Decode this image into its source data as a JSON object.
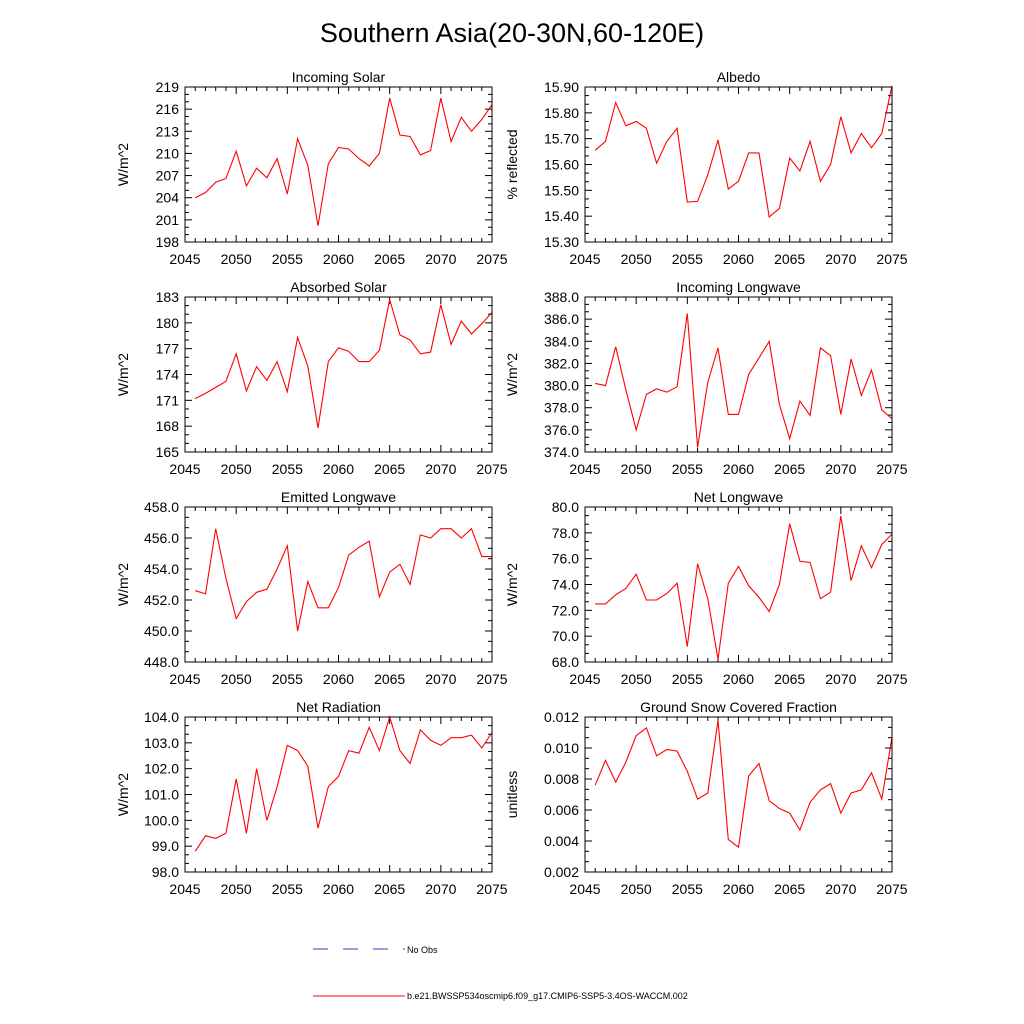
{
  "page": {
    "title": "Southern Asia(20-30N,60-120E)"
  },
  "legend": [
    {
      "label": "No Obs",
      "color": "#3b3bb5",
      "dash": "dashed"
    },
    {
      "label": "b.e21.BWSSP534oscmip6.f09_g17.CMIP6-SSP5-3.4OS-WACCM.002",
      "color": "#ff0000",
      "dash": "solid"
    }
  ],
  "chart_data": [
    {
      "type": "line",
      "title": "Incoming Solar",
      "ylabel": "W/m^2",
      "xlim": [
        2045,
        2075
      ],
      "ylim": [
        198,
        219
      ],
      "xticks": [
        2045,
        2050,
        2055,
        2060,
        2065,
        2070,
        2075
      ],
      "yticks": [
        198,
        201,
        204,
        207,
        210,
        213,
        216,
        219
      ],
      "ytick_labels": [
        "198",
        "201",
        "204",
        "207",
        "210",
        "213",
        "216",
        "219"
      ],
      "color": "#ff0000",
      "x": [
        2046,
        2047,
        2048,
        2049,
        2050,
        2051,
        2052,
        2053,
        2054,
        2055,
        2056,
        2057,
        2058,
        2059,
        2060,
        2061,
        2062,
        2063,
        2064,
        2065,
        2066,
        2067,
        2068,
        2069,
        2070,
        2071,
        2072,
        2073,
        2074,
        2075
      ],
      "values": [
        204.0,
        204.7,
        206.1,
        206.6,
        210.3,
        205.6,
        208.0,
        206.7,
        209.3,
        204.5,
        212.0,
        208.4,
        200.2,
        208.6,
        210.8,
        210.6,
        209.3,
        208.3,
        210.0,
        217.5,
        212.5,
        212.3,
        209.8,
        210.4,
        217.5,
        211.6,
        214.9,
        213.0,
        214.6,
        216.6
      ]
    },
    {
      "type": "line",
      "title": "Albedo",
      "ylabel": "% reflected",
      "xlim": [
        2045,
        2075
      ],
      "ylim": [
        15.3,
        15.9
      ],
      "xticks": [
        2045,
        2050,
        2055,
        2060,
        2065,
        2070,
        2075
      ],
      "yticks": [
        15.3,
        15.4,
        15.5,
        15.6,
        15.7,
        15.8,
        15.9
      ],
      "ytick_labels": [
        "15.30",
        "15.40",
        "15.50",
        "15.60",
        "15.70",
        "15.80",
        "15.90"
      ],
      "color": "#ff0000",
      "x": [
        2046,
        2047,
        2048,
        2049,
        2050,
        2051,
        2052,
        2053,
        2054,
        2055,
        2056,
        2057,
        2058,
        2059,
        2060,
        2061,
        2062,
        2063,
        2064,
        2065,
        2066,
        2067,
        2068,
        2069,
        2070,
        2071,
        2072,
        2073,
        2074,
        2075
      ],
      "values": [
        15.655,
        15.69,
        15.84,
        15.75,
        15.767,
        15.74,
        15.605,
        15.69,
        15.74,
        15.455,
        15.457,
        15.56,
        15.695,
        15.505,
        15.535,
        15.645,
        15.645,
        15.397,
        15.43,
        15.625,
        15.575,
        15.69,
        15.535,
        15.6,
        15.785,
        15.645,
        15.72,
        15.665,
        15.72,
        15.905
      ]
    },
    {
      "type": "line",
      "title": "Absorbed Solar",
      "ylabel": "W/m^2",
      "xlim": [
        2045,
        2075
      ],
      "ylim": [
        165,
        183
      ],
      "xticks": [
        2045,
        2050,
        2055,
        2060,
        2065,
        2070,
        2075
      ],
      "yticks": [
        165,
        168,
        171,
        174,
        177,
        180,
        183
      ],
      "ytick_labels": [
        "165",
        "168",
        "171",
        "174",
        "177",
        "180",
        "183"
      ],
      "color": "#ff0000",
      "x": [
        2046,
        2047,
        2048,
        2049,
        2050,
        2051,
        2052,
        2053,
        2054,
        2055,
        2056,
        2057,
        2058,
        2059,
        2060,
        2061,
        2062,
        2063,
        2064,
        2065,
        2066,
        2067,
        2068,
        2069,
        2070,
        2071,
        2072,
        2073,
        2074,
        2075
      ],
      "values": [
        171.2,
        171.8,
        172.5,
        173.2,
        176.4,
        172.1,
        174.9,
        173.3,
        175.5,
        172.0,
        178.3,
        175.0,
        167.8,
        175.5,
        177.1,
        176.7,
        175.5,
        175.5,
        176.8,
        182.7,
        178.6,
        178.0,
        176.4,
        176.6,
        182.1,
        177.5,
        180.2,
        178.7,
        179.9,
        181.2
      ]
    },
    {
      "type": "line",
      "title": "Incoming Longwave",
      "ylabel": "W/m^2",
      "xlim": [
        2045,
        2075
      ],
      "ylim": [
        374.0,
        388.0
      ],
      "xticks": [
        2045,
        2050,
        2055,
        2060,
        2065,
        2070,
        2075
      ],
      "yticks": [
        374.0,
        376.0,
        378.0,
        380.0,
        382.0,
        384.0,
        386.0,
        388.0
      ],
      "ytick_labels": [
        "374.0",
        "376.0",
        "378.0",
        "380.0",
        "382.0",
        "384.0",
        "386.0",
        "388.0"
      ],
      "color": "#ff0000",
      "x": [
        2046,
        2047,
        2048,
        2049,
        2050,
        2051,
        2052,
        2053,
        2054,
        2055,
        2056,
        2057,
        2058,
        2059,
        2060,
        2061,
        2062,
        2063,
        2064,
        2065,
        2066,
        2067,
        2068,
        2069,
        2070,
        2071,
        2072,
        2073,
        2074,
        2075
      ],
      "values": [
        380.2,
        380.0,
        383.5,
        379.6,
        376.0,
        379.2,
        379.7,
        379.4,
        379.9,
        386.5,
        374.4,
        380.3,
        383.4,
        377.4,
        377.4,
        381.0,
        382.5,
        384.0,
        378.3,
        375.2,
        378.6,
        377.3,
        383.4,
        382.7,
        377.4,
        382.4,
        379.1,
        381.4,
        377.8,
        377.0
      ]
    },
    {
      "type": "line",
      "title": "Emitted Longwave",
      "ylabel": "W/m^2",
      "xlim": [
        2045,
        2075
      ],
      "ylim": [
        448.0,
        458.0
      ],
      "xticks": [
        2045,
        2050,
        2055,
        2060,
        2065,
        2070,
        2075
      ],
      "yticks": [
        448.0,
        450.0,
        452.0,
        454.0,
        456.0,
        458.0
      ],
      "ytick_labels": [
        "448.0",
        "450.0",
        "452.0",
        "454.0",
        "456.0",
        "458.0"
      ],
      "color": "#ff0000",
      "x": [
        2046,
        2047,
        2048,
        2049,
        2050,
        2051,
        2052,
        2053,
        2054,
        2055,
        2056,
        2057,
        2058,
        2059,
        2060,
        2061,
        2062,
        2063,
        2064,
        2065,
        2066,
        2067,
        2068,
        2069,
        2070,
        2071,
        2072,
        2073,
        2074,
        2075
      ],
      "values": [
        452.6,
        452.4,
        456.6,
        453.4,
        450.8,
        451.9,
        452.5,
        452.7,
        454.0,
        455.5,
        450.0,
        453.2,
        451.5,
        451.5,
        452.8,
        454.9,
        455.4,
        455.8,
        452.2,
        453.8,
        454.3,
        453.0,
        456.2,
        456.0,
        456.6,
        456.6,
        456.0,
        456.6,
        454.8,
        454.8
      ]
    },
    {
      "type": "line",
      "title": "Net Longwave",
      "ylabel": "W/m^2",
      "xlim": [
        2045,
        2075
      ],
      "ylim": [
        68.0,
        80.0
      ],
      "xticks": [
        2045,
        2050,
        2055,
        2060,
        2065,
        2070,
        2075
      ],
      "yticks": [
        68.0,
        70.0,
        72.0,
        74.0,
        76.0,
        78.0,
        80.0
      ],
      "ytick_labels": [
        "68.0",
        "70.0",
        "72.0",
        "74.0",
        "76.0",
        "78.0",
        "80.0"
      ],
      "color": "#ff0000",
      "x": [
        2046,
        2047,
        2048,
        2049,
        2050,
        2051,
        2052,
        2053,
        2054,
        2055,
        2056,
        2057,
        2058,
        2059,
        2060,
        2061,
        2062,
        2063,
        2064,
        2065,
        2066,
        2067,
        2068,
        2069,
        2070,
        2071,
        2072,
        2073,
        2074,
        2075
      ],
      "values": [
        72.5,
        72.5,
        73.2,
        73.7,
        74.8,
        72.8,
        72.8,
        73.3,
        74.1,
        69.2,
        75.6,
        72.9,
        68.2,
        74.1,
        75.4,
        73.9,
        73.0,
        71.9,
        74.0,
        78.7,
        75.8,
        75.7,
        72.9,
        73.4,
        79.3,
        74.3,
        77.0,
        75.3,
        77.1,
        77.9
      ]
    },
    {
      "type": "line",
      "title": "Net Radiation",
      "ylabel": "W/m^2",
      "xlim": [
        2045,
        2075
      ],
      "ylim": [
        98.0,
        104.0
      ],
      "xticks": [
        2045,
        2050,
        2055,
        2060,
        2065,
        2070,
        2075
      ],
      "yticks": [
        98.0,
        99.0,
        100.0,
        101.0,
        102.0,
        103.0,
        104.0
      ],
      "ytick_labels": [
        "98.0",
        "99.0",
        "100.0",
        "101.0",
        "102.0",
        "103.0",
        "104.0"
      ],
      "color": "#ff0000",
      "x": [
        2046,
        2047,
        2048,
        2049,
        2050,
        2051,
        2052,
        2053,
        2054,
        2055,
        2056,
        2057,
        2058,
        2059,
        2060,
        2061,
        2062,
        2063,
        2064,
        2065,
        2066,
        2067,
        2068,
        2069,
        2070,
        2071,
        2072,
        2073,
        2074,
        2075
      ],
      "values": [
        98.8,
        99.4,
        99.3,
        99.5,
        101.6,
        99.5,
        102.0,
        100.0,
        101.3,
        102.9,
        102.7,
        102.1,
        99.7,
        101.3,
        101.7,
        102.7,
        102.6,
        103.6,
        102.7,
        104.0,
        102.7,
        102.2,
        103.5,
        103.1,
        102.9,
        103.2,
        103.2,
        103.3,
        102.8,
        103.4
      ]
    },
    {
      "type": "line",
      "title": "Ground Snow Covered Fraction",
      "ylabel": "unitless",
      "xlim": [
        2045,
        2075
      ],
      "ylim": [
        0.002,
        0.012
      ],
      "xticks": [
        2045,
        2050,
        2055,
        2060,
        2065,
        2070,
        2075
      ],
      "yticks": [
        0.002,
        0.004,
        0.006,
        0.008,
        0.01,
        0.012
      ],
      "ytick_labels": [
        "0.002",
        "0.004",
        "0.006",
        "0.008",
        "0.010",
        "0.012"
      ],
      "color": "#ff0000",
      "x": [
        2046,
        2047,
        2048,
        2049,
        2050,
        2051,
        2052,
        2053,
        2054,
        2055,
        2056,
        2057,
        2058,
        2059,
        2060,
        2061,
        2062,
        2063,
        2064,
        2065,
        2066,
        2067,
        2068,
        2069,
        2070,
        2071,
        2072,
        2073,
        2074,
        2075
      ],
      "values": [
        0.0076,
        0.0092,
        0.0078,
        0.0091,
        0.0108,
        0.0113,
        0.0095,
        0.0099,
        0.0098,
        0.0085,
        0.0067,
        0.0071,
        0.0118,
        0.0041,
        0.0036,
        0.0082,
        0.009,
        0.0066,
        0.0061,
        0.0058,
        0.0047,
        0.0065,
        0.0073,
        0.0077,
        0.0058,
        0.0071,
        0.0073,
        0.0084,
        0.0067,
        0.0107
      ]
    }
  ]
}
